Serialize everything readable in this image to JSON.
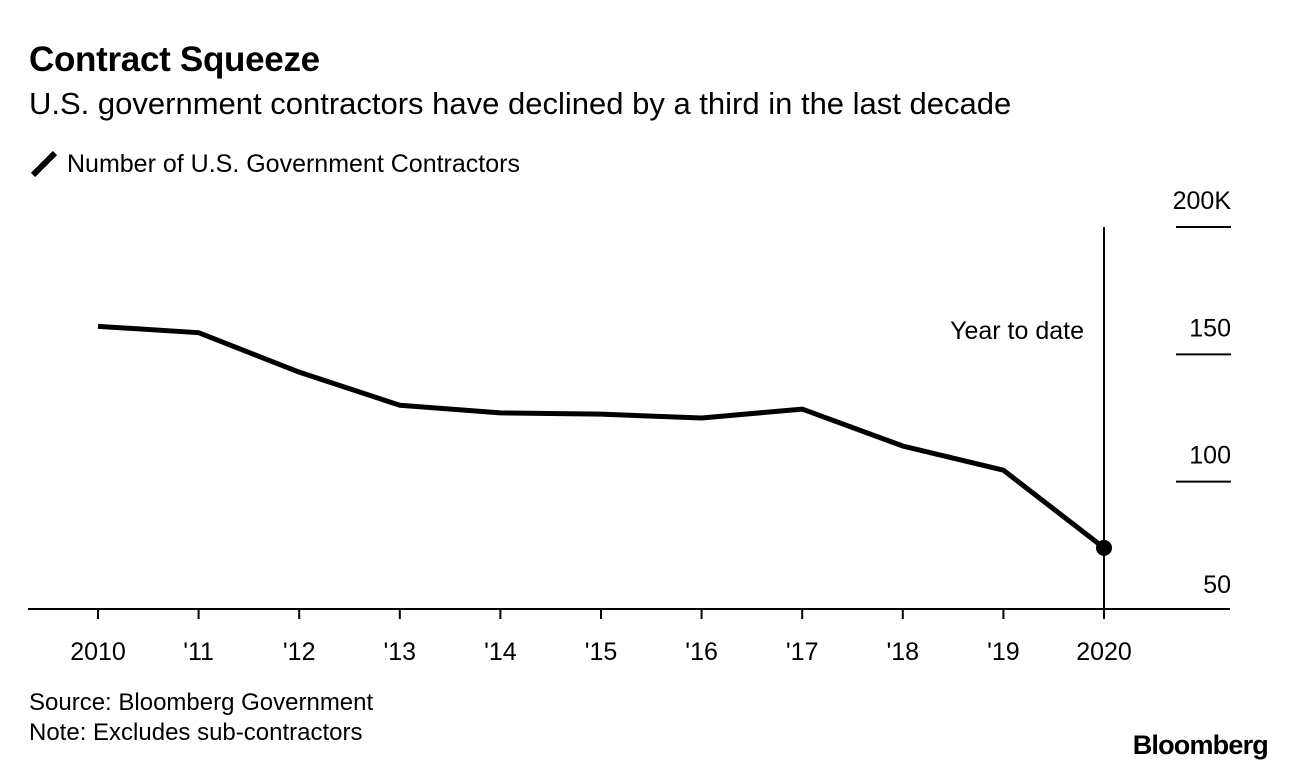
{
  "header": {
    "title": "Contract Squeeze",
    "subtitle": "U.S. government contractors have declined by a third in the last decade"
  },
  "legend": {
    "label": "Number of U.S. Government Contractors",
    "icon": "diagonal-line-icon"
  },
  "footer": {
    "source": "Source: Bloomberg Government",
    "note": "Note: Excludes sub-contractors"
  },
  "brand": {
    "logo_text": "Bloomberg"
  },
  "colors": {
    "line": "#000000",
    "background": "#ffffff"
  },
  "chart_data": {
    "type": "line",
    "title": "Contract Squeeze",
    "subtitle": "U.S. government contractors have declined by a third in the last decade",
    "xlabel": "",
    "ylabel": "",
    "x": [
      2010,
      2011,
      2012,
      2013,
      2014,
      2015,
      2016,
      2017,
      2018,
      2019,
      2020
    ],
    "x_tick_labels": [
      "2010",
      "'11",
      "'12",
      "'13",
      "'14",
      "'15",
      "'16",
      "'17",
      "'18",
      "'19",
      "2020"
    ],
    "series": [
      {
        "name": "Number of U.S. Government Contractors",
        "values": [
          161,
          158.5,
          143,
          130,
          127,
          126.5,
          125,
          128.5,
          114,
          104.5,
          74
        ]
      }
    ],
    "ylim": [
      50,
      200
    ],
    "y_ticks": [
      50,
      100,
      150,
      200
    ],
    "y_tick_labels": [
      "50",
      "100",
      "150",
      "200K"
    ],
    "y_axis_position": "right",
    "grid": false,
    "legend_position": "top-left",
    "annotations": [
      {
        "text": "Year to date",
        "x": 2020
      }
    ],
    "last_point_marker": true
  }
}
